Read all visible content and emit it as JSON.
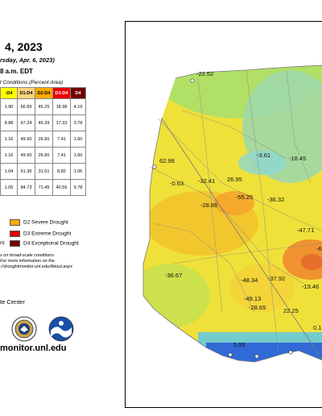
{
  "header": {
    "title_date": "4, 2023",
    "subtitle": "rsday, Apr. 6, 2023)",
    "release_time": "8 a.m. EDT"
  },
  "table": {
    "caption": "t Conditions (Percent Area)",
    "headers": [
      "-D4",
      "D1-D4",
      "D2-D4",
      "D3-D4",
      "D4"
    ],
    "rows": [
      [
        "1.90",
        "66.89",
        "45.25",
        "18.98",
        "4.19"
      ],
      [
        "8.88",
        "67.24",
        "46.39",
        "17.33",
        "3.78"
      ],
      [
        "1.16",
        "49.90",
        "26.60",
        "7.41",
        "1.60"
      ],
      [
        "1.16",
        "49.90",
        "26.60",
        "7.41",
        "1.60"
      ],
      [
        "1.04",
        "61.36",
        "31.61",
        "8.82",
        "1.06"
      ],
      [
        "1.05",
        "84.73",
        "71.45",
        "40.56",
        "9.78"
      ]
    ]
  },
  "legend": {
    "items": [
      {
        "label": "D2 Severe Drought",
        "color": "#ffaa00"
      },
      {
        "label": "D3 Extreme Drought",
        "color": "#e60000"
      },
      {
        "label": "nt",
        "color": "#fcd37f"
      },
      {
        "label": "D4 Exceptional Drought",
        "color": "#730000"
      }
    ]
  },
  "note": {
    "line1": "s on broad-scale conditions",
    "line2": "For more information on the",
    "line3": "://droughtmonitor.unl.edu/About.aspx"
  },
  "footer": {
    "author": "te Center",
    "website": "monitor.unl.edu"
  },
  "map": {
    "labels": [
      {
        "id": "l1",
        "text": "-22.52"
      },
      {
        "id": "l2",
        "text": "62.98"
      },
      {
        "id": "l3",
        "text": "-0.63"
      },
      {
        "id": "l4",
        "text": "-32.41"
      },
      {
        "id": "l5",
        "text": "26.95"
      },
      {
        "id": "l6",
        "text": "-3.61"
      },
      {
        "id": "l7",
        "text": "-18.45"
      },
      {
        "id": "l8",
        "text": "-55.25"
      },
      {
        "id": "l9",
        "text": "-36.32"
      },
      {
        "id": "l10",
        "text": "-28.86"
      },
      {
        "id": "l11",
        "text": "-47.71"
      },
      {
        "id": "l12",
        "text": "-36.67"
      },
      {
        "id": "l13",
        "text": "-48.34"
      },
      {
        "id": "l14",
        "text": "-37.92"
      },
      {
        "id": "l15",
        "text": "-13.46"
      },
      {
        "id": "l16",
        "text": "-49.13"
      },
      {
        "id": "l17",
        "text": "-28.65"
      },
      {
        "id": "l18",
        "text": "22.25"
      },
      {
        "id": "l19",
        "text": "5.55"
      },
      {
        "id": "l20",
        "text": "0.1"
      },
      {
        "id": "l21",
        "text": "-6"
      }
    ]
  }
}
